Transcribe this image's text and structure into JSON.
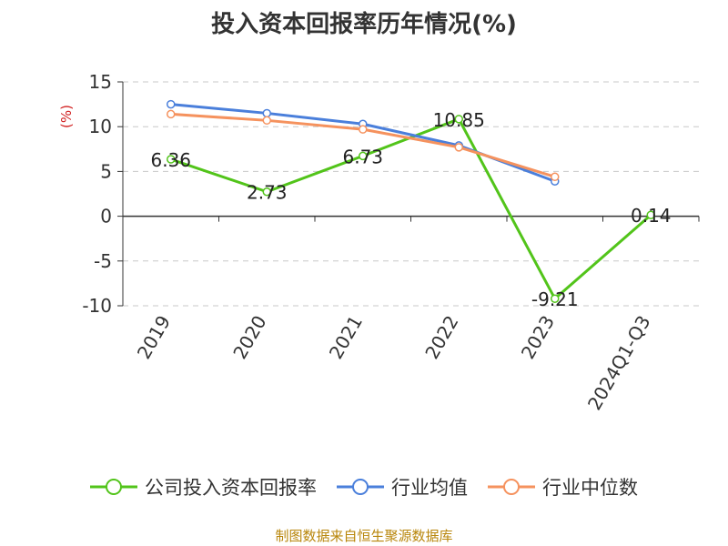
{
  "chart_data": {
    "type": "line",
    "title": "投入资本回报率历年情况(%)",
    "ylabel": "(%)",
    "xlabel": "",
    "categories": [
      "2019",
      "2020",
      "2021",
      "2022",
      "2023",
      "2024Q1-Q3"
    ],
    "ylim": [
      -10,
      15
    ],
    "yticks": [
      -10,
      -5,
      0,
      5,
      10,
      15
    ],
    "grid": true,
    "legend_position": "bottom",
    "series": [
      {
        "name": "公司投入资本回报率",
        "color": "#52c41a",
        "values": [
          6.36,
          2.73,
          6.73,
          10.85,
          -9.21,
          0.14
        ],
        "data_labels": [
          "6.36",
          "2.73",
          "6.73",
          "10.85",
          "-9.21",
          "0.14"
        ]
      },
      {
        "name": "行业均值",
        "color": "#4a7fdb",
        "values": [
          12.5,
          11.5,
          10.3,
          7.9,
          3.9,
          null
        ]
      },
      {
        "name": "行业中位数",
        "color": "#f5925e",
        "values": [
          11.4,
          10.7,
          9.7,
          7.7,
          4.4,
          null
        ]
      }
    ]
  },
  "source_note": "制图数据来自恒生聚源数据库"
}
